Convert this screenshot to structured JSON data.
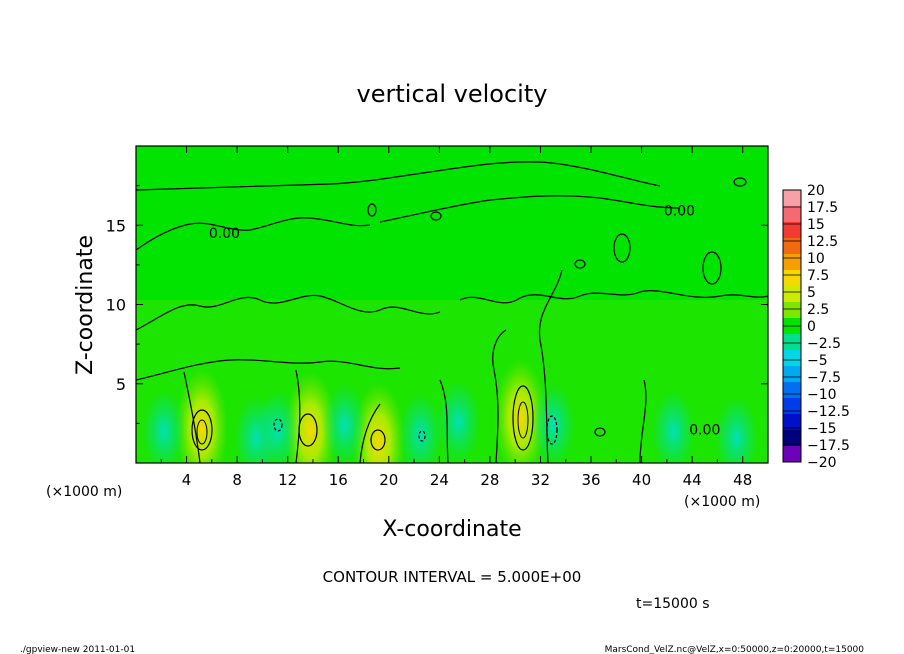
{
  "chart_data": {
    "type": "heatmap",
    "title": "vertical velocity",
    "xlabel": "X-coordinate",
    "ylabel": "Z-coordinate",
    "x_unit": "(×1000 m)",
    "x_unit_right": "(×1000 m)",
    "x_range": [
      0,
      50
    ],
    "y_range": [
      0,
      20
    ],
    "x_ticks": [
      "4",
      "8",
      "12",
      "16",
      "20",
      "24",
      "28",
      "32",
      "36",
      "40",
      "44",
      "48"
    ],
    "y_ticks": [
      "5",
      "10",
      "15"
    ],
    "colorbar_labels": [
      "20",
      "17.5",
      "15",
      "12.5",
      "10",
      "7.5",
      "5",
      "2.5",
      "0",
      "−2.5",
      "−5",
      "−7.5",
      "−10",
      "−12.5",
      "−15",
      "−17.5",
      "−20"
    ],
    "colorbar_colors": [
      "#f7a0a8",
      "#f46a72",
      "#f23a32",
      "#f26a10",
      "#f5a000",
      "#f5d800",
      "#cdea00",
      "#7ee600",
      "#00e400",
      "#00e08a",
      "#00d6e6",
      "#00aaf0",
      "#0070f0",
      "#003cea",
      "#0010c8",
      "#00007a",
      "#6a00b8"
    ],
    "contour_interval_text": "CONTOUR INTERVAL = 5.000E+00",
    "time_text": "t=15000 s",
    "contour_labels": [
      {
        "x": 7.0,
        "y": 14.2,
        "text": "0.00"
      },
      {
        "x": 43.0,
        "y": 15.6,
        "text": "0.00"
      },
      {
        "x": 45.0,
        "y": 1.8,
        "text": "0.00"
      }
    ],
    "updrafts": [
      {
        "x": 5.2,
        "y": 2.2,
        "value": 7.5
      },
      {
        "x": 13.8,
        "y": 2.0,
        "value": 5
      },
      {
        "x": 19.2,
        "y": 1.3,
        "value": 5
      },
      {
        "x": 30.4,
        "y": 2.8,
        "value": 7.5
      }
    ]
  },
  "footer": {
    "left": "./gpview-new 2011-01-01",
    "right": "MarsCond_VelZ.nc@VelZ,x=0:50000,z=0:20000,t=15000"
  }
}
